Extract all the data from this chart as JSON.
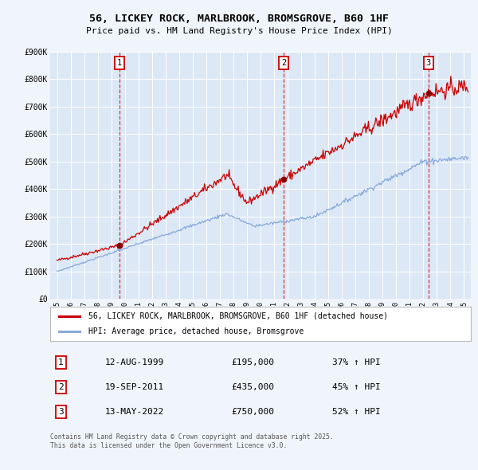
{
  "title": "56, LICKEY ROCK, MARLBROOK, BROMSGROVE, B60 1HF",
  "subtitle": "Price paid vs. HM Land Registry's House Price Index (HPI)",
  "background_color": "#f0f4fb",
  "plot_bg_color": "#dce8f5",
  "ylim": [
    0,
    900000
  ],
  "yticks": [
    0,
    100000,
    200000,
    300000,
    400000,
    500000,
    600000,
    700000,
    800000,
    900000
  ],
  "ytick_labels": [
    "£0",
    "£100K",
    "£200K",
    "£300K",
    "£400K",
    "£500K",
    "£600K",
    "£700K",
    "£800K",
    "£900K"
  ],
  "xlim_start": 1994.5,
  "xlim_end": 2025.5,
  "xticks": [
    1995,
    1996,
    1997,
    1998,
    1999,
    2000,
    2001,
    2002,
    2003,
    2004,
    2005,
    2006,
    2007,
    2008,
    2009,
    2010,
    2011,
    2012,
    2013,
    2014,
    2015,
    2016,
    2017,
    2018,
    2019,
    2020,
    2021,
    2022,
    2023,
    2024,
    2025
  ],
  "red_line_color": "#cc0000",
  "blue_line_color": "#88aadd",
  "sale_points": [
    {
      "year": 1999.617,
      "value": 195000,
      "label": "1"
    },
    {
      "year": 2011.717,
      "value": 435000,
      "label": "2"
    },
    {
      "year": 2022.367,
      "value": 750000,
      "label": "3"
    }
  ],
  "vline_color": "#cc0000",
  "legend_entries": [
    "56, LICKEY ROCK, MARLBROOK, BROMSGROVE, B60 1HF (detached house)",
    "HPI: Average price, detached house, Bromsgrove"
  ],
  "table_rows": [
    {
      "num": "1",
      "date": "12-AUG-1999",
      "price": "£195,000",
      "pct": "37% ↑ HPI"
    },
    {
      "num": "2",
      "date": "19-SEP-2011",
      "price": "£435,000",
      "pct": "45% ↑ HPI"
    },
    {
      "num": "3",
      "date": "13-MAY-2022",
      "price": "£750,000",
      "pct": "52% ↑ HPI"
    }
  ],
  "footnote": "Contains HM Land Registry data © Crown copyright and database right 2025.\nThis data is licensed under the Open Government Licence v3.0."
}
